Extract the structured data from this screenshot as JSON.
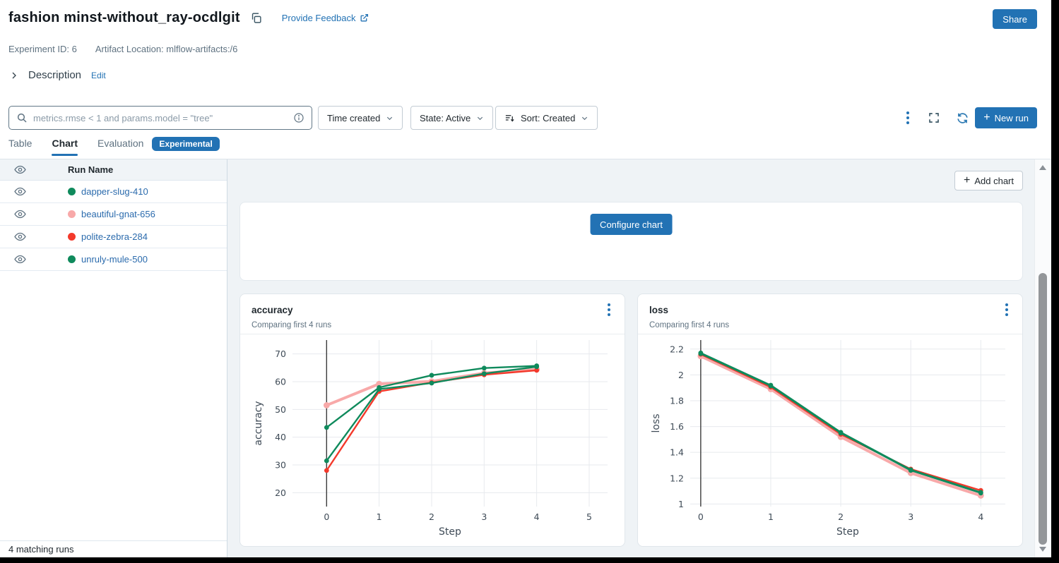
{
  "header": {
    "title": "fashion minst-without_ray-ocdlgit",
    "feedback_link": "Provide Feedback",
    "share_button": "Share",
    "experiment_id": "Experiment ID: 6",
    "artifact_location": "Artifact Location: mlflow-artifacts:/6",
    "description_label": "Description",
    "edit_link": "Edit"
  },
  "toolbar": {
    "search_placeholder": "metrics.rmse < 1 and params.model = \"tree\"",
    "filter_time": "Time created",
    "filter_state": "State: Active",
    "filter_sort": "Sort: Created",
    "new_run_label": "New run"
  },
  "tabs": [
    {
      "label": "Table",
      "active": false
    },
    {
      "label": "Chart",
      "active": true
    },
    {
      "label": "Evaluation",
      "active": false
    }
  ],
  "experimental_badge": "Experimental",
  "runs_panel": {
    "column_header": "Run Name",
    "runs": [
      {
        "name": "dapper-slug-410",
        "color": "#0f8a5c"
      },
      {
        "name": "beautiful-gnat-656",
        "color": "#f8a9a9"
      },
      {
        "name": "polite-zebra-284",
        "color": "#f3392b"
      },
      {
        "name": "unruly-mule-500",
        "color": "#0f8a5c"
      }
    ],
    "footer": "4 matching runs"
  },
  "main": {
    "add_chart_button": "Add chart",
    "configure_chart_button": "Configure chart"
  },
  "colors": {
    "accent": "#2272b4",
    "green": "#0f8a5c",
    "pink": "#f8a9a9",
    "red": "#f3392b"
  },
  "chart_data": [
    {
      "type": "line",
      "title": "accuracy",
      "subtitle": "Comparing first 4 runs",
      "xlabel": "Step",
      "ylabel": "accuracy",
      "x": [
        0,
        1,
        2,
        3,
        4
      ],
      "xlim": [
        -0.65,
        5.35
      ],
      "ylim": [
        15,
        75
      ],
      "xticks": [
        0,
        1,
        2,
        3,
        4,
        5
      ],
      "yticks": [
        20,
        30,
        40,
        50,
        60,
        70
      ],
      "grid": true,
      "legend": "none",
      "series": [
        {
          "name": "beautiful-gnat-656",
          "color": "#f8a9a9",
          "width": 4,
          "values": [
            51.5,
            59.2,
            60.1,
            63.1,
            64.4
          ]
        },
        {
          "name": "polite-zebra-284",
          "color": "#f3392b",
          "width": 2.4,
          "values": [
            28.0,
            56.5,
            59.7,
            62.5,
            64.1
          ]
        },
        {
          "name": "unruly-mule-500",
          "color": "#0f8a5c",
          "width": 2.4,
          "values": [
            31.5,
            57.3,
            59.5,
            62.9,
            65.4
          ]
        },
        {
          "name": "dapper-slug-410",
          "color": "#0f8a5c",
          "width": 2.4,
          "values": [
            43.5,
            57.9,
            62.3,
            64.9,
            65.7
          ]
        }
      ]
    },
    {
      "type": "line",
      "title": "loss",
      "subtitle": "Comparing first 4 runs",
      "xlabel": "Step",
      "ylabel": "loss",
      "x": [
        0,
        1,
        2,
        3,
        4
      ],
      "xlim": [
        -0.15,
        4.35
      ],
      "ylim": [
        0.98,
        2.27
      ],
      "xticks": [
        0,
        1,
        2,
        3,
        4
      ],
      "yticks": [
        1,
        1.2,
        1.4,
        1.6,
        1.8,
        2,
        2.2
      ],
      "grid": true,
      "legend": "none",
      "series": [
        {
          "name": "beautiful-gnat-656",
          "color": "#f8a9a9",
          "width": 4,
          "values": [
            2.145,
            1.89,
            1.52,
            1.24,
            1.065
          ]
        },
        {
          "name": "polite-zebra-284",
          "color": "#f3392b",
          "width": 2.4,
          "values": [
            2.16,
            1.905,
            1.54,
            1.27,
            1.105
          ]
        },
        {
          "name": "unruly-mule-500",
          "color": "#0f8a5c",
          "width": 2.4,
          "values": [
            2.165,
            1.915,
            1.55,
            1.26,
            1.085
          ]
        },
        {
          "name": "dapper-slug-410",
          "color": "#0f8a5c",
          "width": 2.4,
          "values": [
            2.17,
            1.92,
            1.555,
            1.265,
            1.09
          ]
        }
      ]
    }
  ]
}
